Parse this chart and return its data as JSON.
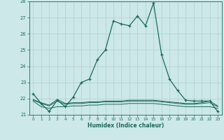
{
  "xlabel": "Humidex (Indice chaleur)",
  "background_color": "#cce8e8",
  "grid_color": "#aed0d0",
  "line_color": "#1a6b5a",
  "xlim": [
    -0.5,
    23.5
  ],
  "ylim": [
    21,
    28
  ],
  "yticks": [
    21,
    22,
    23,
    24,
    25,
    26,
    27,
    28
  ],
  "xticks": [
    0,
    1,
    2,
    3,
    4,
    5,
    6,
    7,
    8,
    9,
    10,
    11,
    12,
    13,
    14,
    15,
    16,
    17,
    18,
    19,
    20,
    21,
    22,
    23
  ],
  "main": [
    22.3,
    21.7,
    21.2,
    21.9,
    21.5,
    22.1,
    23.0,
    23.2,
    24.4,
    25.0,
    26.8,
    26.6,
    26.5,
    27.1,
    26.5,
    27.9,
    24.7,
    23.2,
    22.5,
    21.9,
    21.85,
    21.85,
    21.85,
    21.2
  ],
  "flat1": [
    21.85,
    21.5,
    21.4,
    21.5,
    21.5,
    21.55,
    21.55,
    21.6,
    21.6,
    21.65,
    21.65,
    21.65,
    21.7,
    21.7,
    21.7,
    21.7,
    21.65,
    21.6,
    21.55,
    21.5,
    21.5,
    21.5,
    21.5,
    21.4
  ],
  "flat2": [
    21.9,
    21.7,
    21.55,
    21.85,
    21.65,
    21.7,
    21.7,
    21.75,
    21.75,
    21.8,
    21.8,
    21.8,
    21.85,
    21.85,
    21.85,
    21.85,
    21.8,
    21.75,
    21.7,
    21.65,
    21.65,
    21.7,
    21.75,
    21.5
  ],
  "flat3": [
    21.95,
    21.75,
    21.6,
    21.95,
    21.7,
    21.75,
    21.75,
    21.8,
    21.8,
    21.85,
    21.85,
    21.85,
    21.9,
    21.9,
    21.9,
    21.9,
    21.85,
    21.8,
    21.75,
    21.7,
    21.7,
    21.75,
    21.85,
    21.55
  ]
}
